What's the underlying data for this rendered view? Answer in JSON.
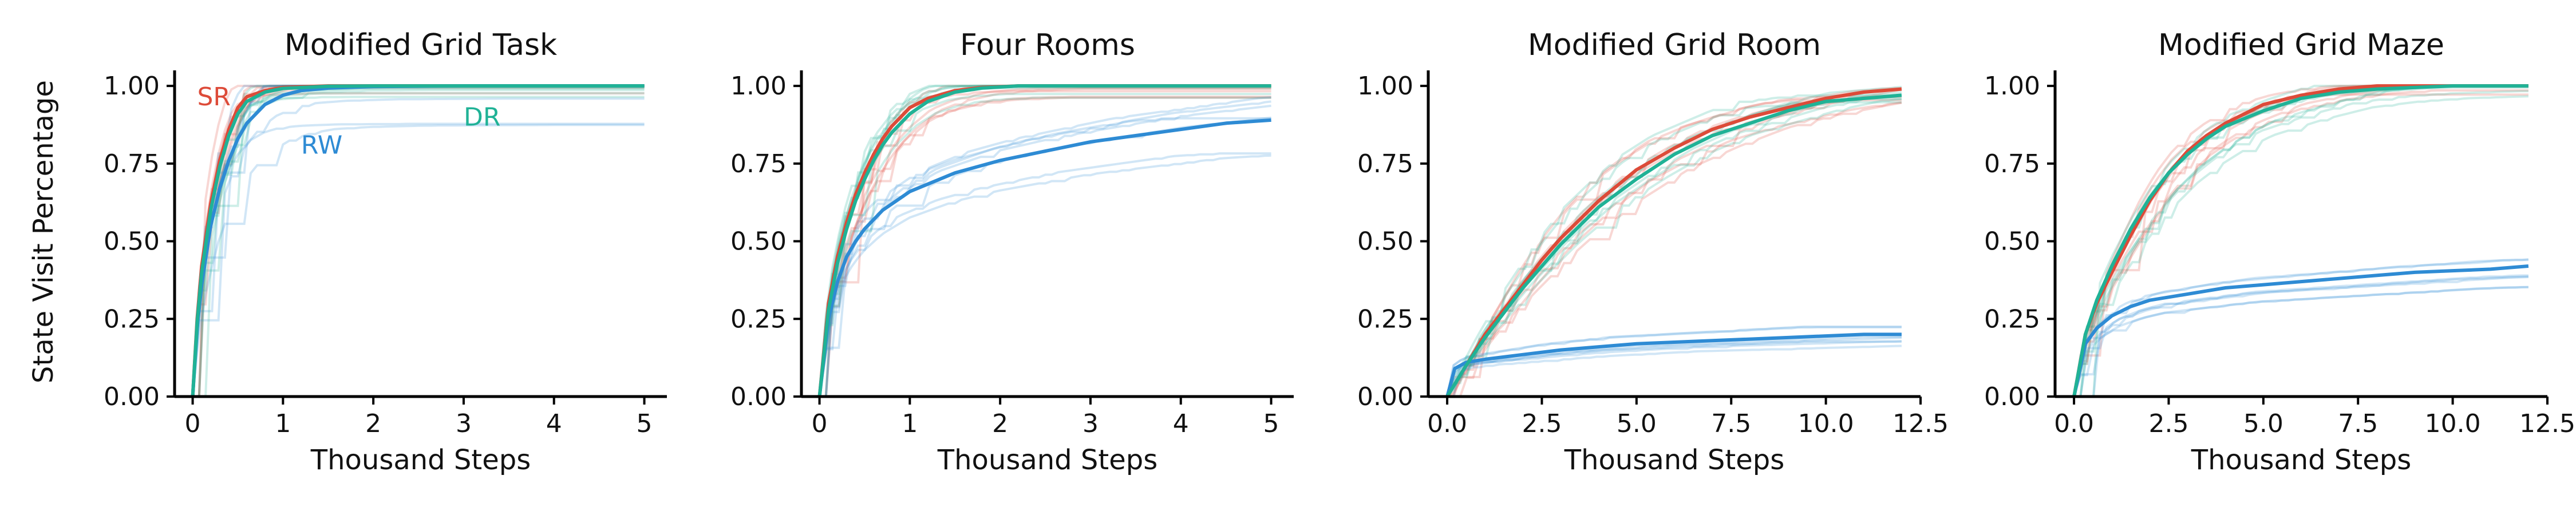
{
  "colors": {
    "SR": "#dd4b39",
    "RW": "#2e8bd4",
    "DR": "#20b296",
    "axis": "#000000"
  },
  "figure": {
    "ylabel": "State Visit Percentage"
  },
  "chart_data": [
    {
      "type": "line",
      "title": "Modified Grid Task",
      "xlabel": "Thousand Steps",
      "ylabel": "State Visit Percentage",
      "xlim": [
        -0.2,
        5.25
      ],
      "ylim": [
        0,
        1.05
      ],
      "xticks": [
        0,
        1,
        2,
        3,
        4,
        5
      ],
      "xtick_labels": [
        "0",
        "1",
        "2",
        "3",
        "4",
        "5"
      ],
      "yticks": [
        0,
        0.25,
        0.5,
        0.75,
        1.0
      ],
      "ytick_labels": [
        "0.00",
        "0.25",
        "0.50",
        "0.75",
        "1.00"
      ],
      "annotations": [
        {
          "text": "SR",
          "series": "SR",
          "x": 0.05,
          "y": 0.965
        },
        {
          "text": "RW",
          "series": "RW",
          "x": 1.2,
          "y": 0.81
        },
        {
          "text": "DR",
          "series": "DR",
          "x": 3.0,
          "y": 0.9
        }
      ],
      "series": [
        {
          "name": "SR",
          "x": [
            0,
            0.05,
            0.1,
            0.2,
            0.3,
            0.4,
            0.5,
            0.6,
            0.8,
            1.0,
            1.5,
            2,
            5
          ],
          "y": [
            0,
            0.25,
            0.42,
            0.62,
            0.76,
            0.86,
            0.93,
            0.965,
            0.985,
            0.995,
            1.0,
            1.0,
            1.0
          ]
        },
        {
          "name": "RW",
          "x": [
            0,
            0.05,
            0.1,
            0.2,
            0.3,
            0.4,
            0.5,
            0.6,
            0.8,
            1.0,
            1.2,
            1.5,
            2,
            3,
            5
          ],
          "y": [
            0,
            0.22,
            0.36,
            0.55,
            0.67,
            0.76,
            0.83,
            0.88,
            0.94,
            0.97,
            0.985,
            0.993,
            0.998,
            1.0,
            1.0
          ]
        },
        {
          "name": "DR",
          "x": [
            0,
            0.05,
            0.1,
            0.2,
            0.3,
            0.4,
            0.5,
            0.6,
            0.8,
            1.0,
            1.5,
            2,
            5
          ],
          "y": [
            0,
            0.24,
            0.4,
            0.6,
            0.74,
            0.84,
            0.91,
            0.95,
            0.98,
            0.992,
            0.999,
            1.0,
            1.0
          ]
        }
      ]
    },
    {
      "type": "line",
      "title": "Four Rooms",
      "xlabel": "Thousand Steps",
      "ylabel": "",
      "xlim": [
        -0.2,
        5.25
      ],
      "ylim": [
        0,
        1.05
      ],
      "xticks": [
        0,
        1,
        2,
        3,
        4,
        5
      ],
      "xtick_labels": [
        "0",
        "1",
        "2",
        "3",
        "4",
        "5"
      ],
      "yticks": [
        0,
        0.25,
        0.5,
        0.75,
        1.0
      ],
      "ytick_labels": [
        "0.00",
        "0.25",
        "0.50",
        "0.75",
        "1.00"
      ],
      "series": [
        {
          "name": "SR",
          "x": [
            0,
            0.1,
            0.2,
            0.3,
            0.4,
            0.5,
            0.6,
            0.7,
            0.8,
            1.0,
            1.2,
            1.5,
            1.8,
            2.2,
            3,
            5
          ],
          "y": [
            0,
            0.3,
            0.45,
            0.56,
            0.65,
            0.72,
            0.78,
            0.83,
            0.87,
            0.93,
            0.96,
            0.985,
            0.995,
            1.0,
            1.0,
            1.0
          ]
        },
        {
          "name": "RW",
          "x": [
            0,
            0.1,
            0.2,
            0.3,
            0.4,
            0.5,
            0.7,
            0.9,
            1.0,
            1.5,
            2,
            2.5,
            3,
            3.5,
            4,
            4.5,
            5
          ],
          "y": [
            0,
            0.25,
            0.37,
            0.45,
            0.5,
            0.54,
            0.6,
            0.64,
            0.66,
            0.72,
            0.76,
            0.79,
            0.82,
            0.84,
            0.86,
            0.88,
            0.89
          ]
        },
        {
          "name": "DR",
          "x": [
            0,
            0.1,
            0.2,
            0.3,
            0.4,
            0.5,
            0.6,
            0.7,
            0.8,
            1.0,
            1.2,
            1.5,
            1.8,
            2.2,
            3,
            5
          ],
          "y": [
            0,
            0.28,
            0.43,
            0.54,
            0.63,
            0.7,
            0.76,
            0.81,
            0.85,
            0.91,
            0.95,
            0.98,
            0.993,
            1.0,
            1.0,
            1.0
          ]
        }
      ]
    },
    {
      "type": "line",
      "title": "Modified Grid Room",
      "xlabel": "Thousand Steps",
      "ylabel": "",
      "xlim": [
        -0.5,
        12.5
      ],
      "ylim": [
        0,
        1.05
      ],
      "xticks": [
        0,
        2.5,
        5,
        7.5,
        10,
        12.5
      ],
      "xtick_labels": [
        "0.0",
        "2.5",
        "5.0",
        "7.5",
        "10.0",
        "12.5"
      ],
      "yticks": [
        0,
        0.25,
        0.5,
        0.75,
        1.0
      ],
      "ytick_labels": [
        "0.00",
        "0.25",
        "0.50",
        "0.75",
        "1.00"
      ],
      "series": [
        {
          "name": "SR",
          "x": [
            0,
            0.5,
            1,
            1.5,
            2,
            2.5,
            3,
            3.5,
            4,
            5,
            6,
            7,
            8,
            9,
            10,
            11,
            12
          ],
          "y": [
            0,
            0.1,
            0.2,
            0.28,
            0.36,
            0.44,
            0.51,
            0.57,
            0.63,
            0.73,
            0.8,
            0.86,
            0.9,
            0.93,
            0.96,
            0.98,
            0.99
          ]
        },
        {
          "name": "RW",
          "x": [
            0,
            0.2,
            0.5,
            1,
            2,
            3,
            4,
            5,
            6,
            7,
            8,
            9,
            10,
            11,
            12
          ],
          "y": [
            0,
            0.09,
            0.11,
            0.12,
            0.135,
            0.15,
            0.16,
            0.17,
            0.175,
            0.18,
            0.185,
            0.19,
            0.195,
            0.2,
            0.2
          ]
        },
        {
          "name": "DR",
          "x": [
            0,
            0.5,
            1,
            1.5,
            2,
            2.5,
            3,
            3.5,
            4,
            5,
            6,
            7,
            8,
            9,
            10,
            11,
            12
          ],
          "y": [
            0,
            0.1,
            0.19,
            0.27,
            0.35,
            0.42,
            0.49,
            0.55,
            0.61,
            0.7,
            0.78,
            0.84,
            0.88,
            0.92,
            0.95,
            0.96,
            0.97
          ]
        }
      ]
    },
    {
      "type": "line",
      "title": "Modified Grid Maze",
      "xlabel": "Thousand Steps",
      "ylabel": "",
      "xlim": [
        -0.5,
        12.5
      ],
      "ylim": [
        0,
        1.05
      ],
      "xticks": [
        0,
        2.5,
        5,
        7.5,
        10,
        12.5
      ],
      "xtick_labels": [
        "0.0",
        "2.5",
        "5.0",
        "7.5",
        "10.0",
        "12.5"
      ],
      "yticks": [
        0,
        0.25,
        0.5,
        0.75,
        1.0
      ],
      "ytick_labels": [
        "0.00",
        "0.25",
        "0.50",
        "0.75",
        "1.00"
      ],
      "series": [
        {
          "name": "SR",
          "x": [
            0,
            0.3,
            0.6,
            1,
            1.5,
            2,
            2.5,
            3,
            3.5,
            4,
            5,
            6,
            7,
            8,
            9,
            10,
            12
          ],
          "y": [
            0,
            0.2,
            0.3,
            0.4,
            0.52,
            0.63,
            0.72,
            0.79,
            0.84,
            0.88,
            0.94,
            0.97,
            0.99,
            1.0,
            1.0,
            1.0,
            1.0
          ]
        },
        {
          "name": "RW",
          "x": [
            0,
            0.3,
            0.6,
            1,
            1.5,
            2,
            3,
            4,
            5,
            6,
            7,
            8,
            9,
            10,
            11,
            12
          ],
          "y": [
            0,
            0.17,
            0.22,
            0.26,
            0.29,
            0.31,
            0.33,
            0.35,
            0.36,
            0.37,
            0.38,
            0.39,
            0.4,
            0.405,
            0.41,
            0.42
          ]
        },
        {
          "name": "DR",
          "x": [
            0,
            0.3,
            0.6,
            1,
            1.5,
            2,
            2.5,
            3,
            3.5,
            4,
            5,
            6,
            7,
            8,
            9,
            10,
            12
          ],
          "y": [
            0,
            0.2,
            0.31,
            0.42,
            0.54,
            0.64,
            0.72,
            0.78,
            0.83,
            0.87,
            0.92,
            0.96,
            0.98,
            0.99,
            0.995,
            1.0,
            1.0
          ]
        }
      ]
    }
  ]
}
